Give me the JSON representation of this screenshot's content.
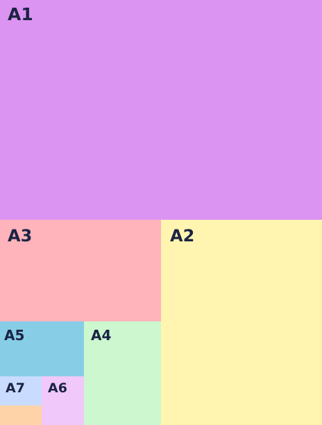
{
  "nodes": [
    {
      "label": "A1"
    },
    {
      "label": "A2"
    },
    {
      "label": "A3"
    },
    {
      "label": "A4"
    },
    {
      "label": "A5"
    },
    {
      "label": "A6"
    },
    {
      "label": "A7"
    }
  ]
}
